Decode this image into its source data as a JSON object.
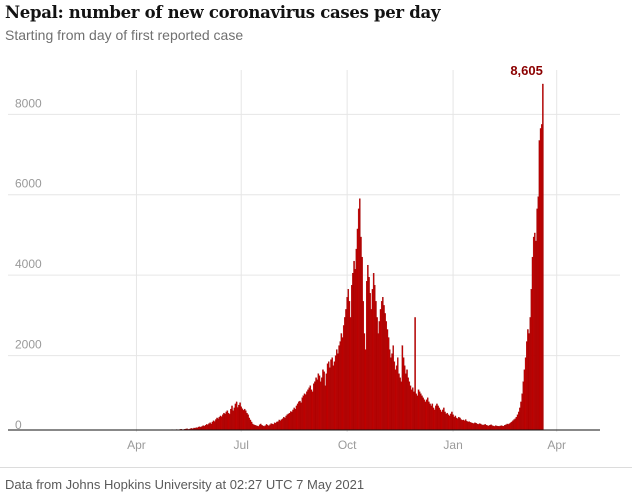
{
  "title": "Nepal: number of new coronavirus cases per day",
  "subtitle": "Starting from day of first reported case",
  "source": "Data from Johns Hopkins University at 02:27 UTC 7 May 2021",
  "colors": {
    "bar": "#c70000",
    "bar_stroke": "#8e0000",
    "grid": "#e6e6e6",
    "axis": "#121212",
    "max_label": "#8b0000"
  },
  "chart_data": {
    "type": "bar",
    "x_start": "2020-01-23",
    "x_end": "2021-05-06",
    "y_ticks": [
      0,
      2000,
      4000,
      6000,
      8000
    ],
    "x_tick_labels": [
      "Apr",
      "Jul",
      "Oct",
      "Jan",
      "Apr"
    ],
    "x_tick_dates": [
      "2020-04-01",
      "2020-07-01",
      "2020-10-01",
      "2021-01-01",
      "2021-04-01"
    ],
    "ylim": [
      0,
      8605
    ],
    "max_label": "8,605",
    "grid": true,
    "series": [
      {
        "values": [
          1,
          0,
          0,
          0,
          0,
          0,
          0,
          0,
          0,
          0,
          0,
          0,
          0,
          0,
          0,
          0,
          0,
          0,
          0,
          0,
          0,
          0,
          0,
          0,
          0,
          0,
          0,
          0,
          0,
          0,
          0,
          0,
          0,
          0,
          0,
          0,
          0,
          0,
          0,
          0,
          0,
          0,
          0,
          0,
          0,
          0,
          0,
          0,
          0,
          0,
          0,
          0,
          0,
          0,
          0,
          0,
          0,
          0,
          0,
          0,
          0,
          0,
          0,
          0,
          0,
          0,
          0,
          0,
          0,
          0,
          0,
          0,
          2,
          0,
          1,
          0,
          1,
          0,
          0,
          0,
          0,
          0,
          0,
          0,
          0,
          0,
          0,
          2,
          3,
          2,
          1,
          5,
          2,
          0,
          3,
          4,
          6,
          2,
          4,
          8,
          10,
          3,
          6,
          9,
          12,
          7,
          5,
          15,
          20,
          10,
          12,
          18,
          25,
          30,
          15,
          22,
          35,
          40,
          28,
          50,
          45,
          60,
          55,
          75,
          80,
          70,
          90,
          110,
          95,
          120,
          140,
          130,
          160,
          180,
          150,
          200,
          230,
          210,
          260,
          300,
          280,
          320,
          350,
          330,
          380,
          420,
          400,
          450,
          480,
          420,
          390,
          520,
          600,
          480,
          550,
          650,
          700,
          560,
          620,
          680,
          580,
          530,
          490,
          520,
          480,
          420,
          380,
          300,
          250,
          200,
          150,
          130,
          120,
          110,
          100,
          90,
          130,
          150,
          120,
          100,
          90,
          110,
          140,
          120,
          100,
          130,
          160,
          150,
          140,
          180,
          170,
          200,
          210,
          250,
          230,
          260,
          280,
          320,
          300,
          350,
          380,
          400,
          420,
          460,
          450,
          500,
          550,
          520,
          600,
          650,
          700,
          720,
          680,
          800,
          850,
          900,
          880,
          950,
          1000,
          1050,
          1100,
          1000,
          950,
          1150,
          1200,
          1300,
          1250,
          1400,
          1350,
          1200,
          1300,
          1500,
          1450,
          1100,
          1400,
          1650,
          1700,
          1550,
          1750,
          1800,
          1600,
          1700,
          1850,
          2000,
          1900,
          2100,
          2200,
          2400,
          2300,
          2600,
          2800,
          3000,
          3300,
          3500,
          3200,
          2800,
          3600,
          3900,
          4200,
          4000,
          4500,
          5000,
          5500,
          5753,
          4800,
          4300,
          3200,
          2400,
          2000,
          3700,
          4100,
          3800,
          3400,
          3000,
          3500,
          3900,
          3600,
          3200,
          2800,
          2400,
          2700,
          3000,
          3200,
          3300,
          3100,
          2900,
          2700,
          2500,
          2300,
          2000,
          1800,
          1900,
          2100,
          1700,
          1500,
          1600,
          1800,
          1400,
          1300,
          1200,
          2100,
          1800,
          1600,
          1400,
          1500,
          1300,
          1200,
          1100,
          1000,
          1050,
          950,
          2800,
          900,
          850,
          1000,
          950,
          900,
          850,
          800,
          750,
          700,
          750,
          800,
          700,
          650,
          600,
          650,
          550,
          500,
          600,
          650,
          600,
          550,
          500,
          450,
          500,
          550,
          450,
          400,
          420,
          380,
          350,
          400,
          450,
          380,
          320,
          350,
          300,
          280,
          320,
          300,
          260,
          240,
          250,
          230,
          260,
          220,
          200,
          210,
          190,
          180,
          170,
          160,
          180,
          170,
          150,
          140,
          160,
          150,
          130,
          120,
          130,
          140,
          120,
          110,
          100,
          120,
          130,
          110,
          100,
          90,
          110,
          100,
          95,
          90,
          100,
          110,
          100,
          95,
          120,
          130,
          150,
          140,
          160,
          180,
          200,
          230,
          260,
          280,
          320,
          380,
          450,
          550,
          700,
          900,
          1200,
          1500,
          1800,
          2200,
          2500,
          2400,
          2800,
          3500,
          4300,
          4800,
          4900,
          4700,
          5500,
          5800,
          7200,
          7500,
          7600,
          8605
        ]
      }
    ]
  }
}
